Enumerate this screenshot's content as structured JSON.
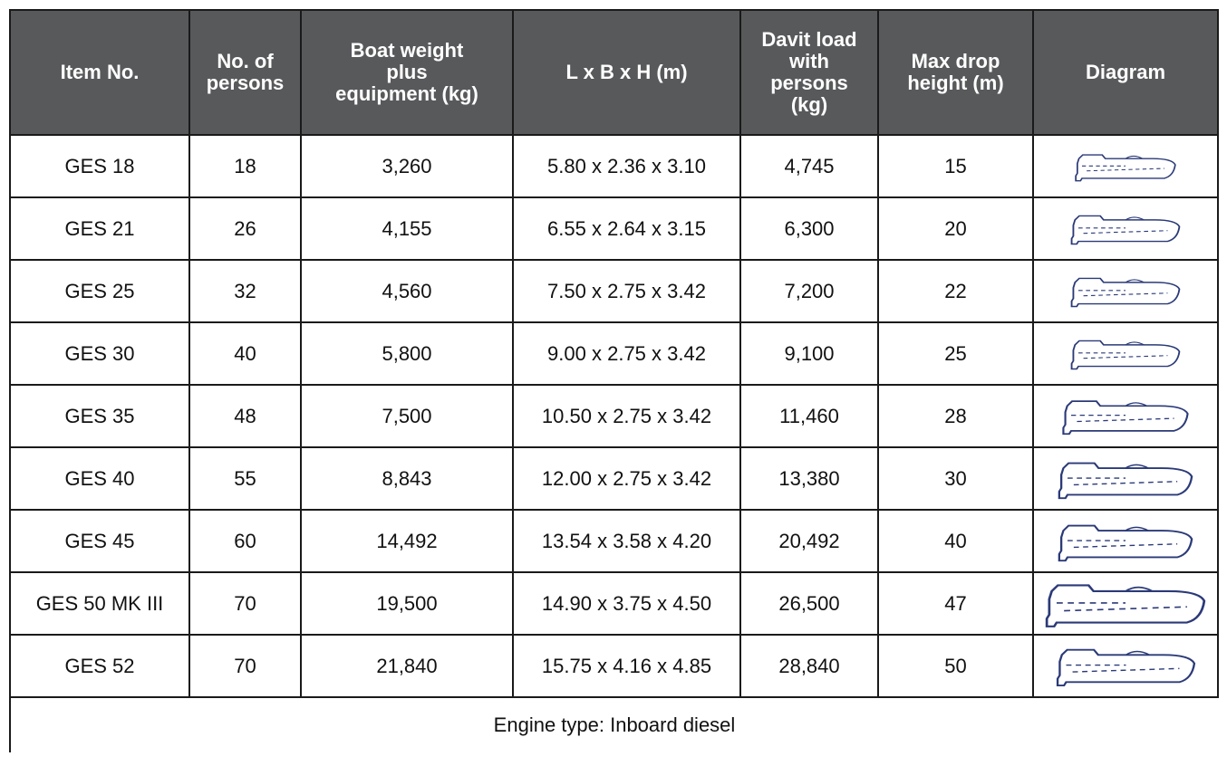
{
  "table": {
    "header": [
      "Item No.",
      "No. of persons",
      "Boat weight plus equipment (kg)",
      "L x B x H (m)",
      "Davit load with persons (kg)",
      "Max drop height (m)",
      "Diagram"
    ],
    "rows": [
      [
        "GES 18",
        "18",
        "3,260",
        "5.80 x 2.36 x 3.10",
        "4,745",
        "15"
      ],
      [
        "GES 21",
        "26",
        "4,155",
        "6.55 x 2.64 x 3.15",
        "6,300",
        "20"
      ],
      [
        "GES 25",
        "32",
        "4,560",
        "7.50 x 2.75 x 3.42",
        "7,200",
        "22"
      ],
      [
        "GES 30",
        "40",
        "5,800",
        "9.00 x 2.75 x 3.42",
        "9,100",
        "25"
      ],
      [
        "GES 35",
        "48",
        "7,500",
        "10.50 x 2.75 x 3.42",
        "11,460",
        "28"
      ],
      [
        "GES 40",
        "55",
        "8,843",
        "12.00 x 2.75 x 3.42",
        "13,380",
        "30"
      ],
      [
        "GES 45",
        "60",
        "14,492",
        "13.54 x 3.58 x 4.20",
        "20,492",
        "40"
      ],
      [
        "GES 50 MK III",
        "70",
        "19,500",
        "14.90 x 3.75 x 4.50",
        "26,500",
        "47"
      ],
      [
        "GES 52",
        "70",
        "21,840",
        "15.75 x 4.16 x 4.85",
        "28,840",
        "50"
      ]
    ],
    "footer": "Engine type: Inboard diesel"
  }
}
